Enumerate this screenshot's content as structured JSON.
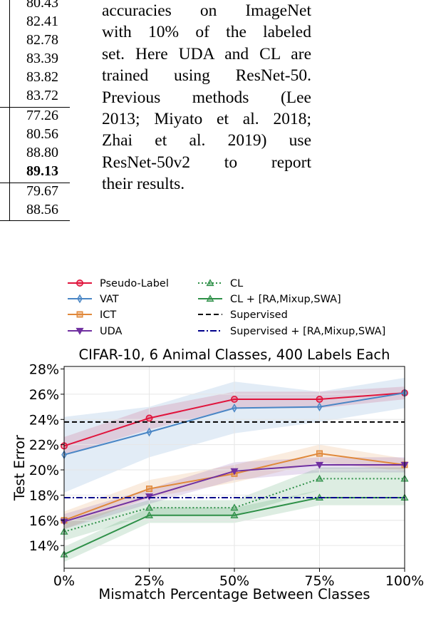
{
  "table_fragment": {
    "rows": [
      {
        "value": "80.43",
        "bold": false
      },
      {
        "value": "82.41",
        "bold": false
      },
      {
        "value": "82.78",
        "bold": false
      },
      {
        "value": "83.39",
        "bold": false
      },
      {
        "value": "83.82",
        "bold": false
      },
      {
        "value": "83.72",
        "bold": false
      },
      {
        "value": "77.26",
        "bold": false
      },
      {
        "value": "80.56",
        "bold": false
      },
      {
        "value": "88.80",
        "bold": false
      },
      {
        "value": "89.13",
        "bold": true
      },
      {
        "value": "79.67",
        "bold": false
      },
      {
        "value": "88.56",
        "bold": false
      }
    ]
  },
  "caption": {
    "lines": [
      "accuracies on ImageNet",
      "with 10% of the labeled",
      "set. Here UDA and CL are",
      "trained using ResNet-50.",
      "Previous methods (Lee",
      "2013; Miyato et al. 2018;",
      "Zhai et al. 2019) use",
      "ResNet-50v2 to report",
      "their results."
    ]
  },
  "chart_data": {
    "type": "line",
    "title": "CIFAR-10, 6 Animal Classes, 400 Labels Each",
    "xlabel": "Mismatch Percentage Between Classes",
    "ylabel": "Test Error",
    "x": [
      0,
      25,
      50,
      75,
      100
    ],
    "x_ticklabels": [
      "0%",
      "25%",
      "50%",
      "75%",
      "100%"
    ],
    "y_ticks": [
      14,
      16,
      18,
      20,
      22,
      24,
      26,
      28
    ],
    "y_ticklabels": [
      "14%",
      "16%",
      "18%",
      "20%",
      "22%",
      "24%",
      "26%",
      "28%"
    ],
    "xlim": [
      0,
      100
    ],
    "ylim": [
      12.2,
      28.2
    ],
    "grid": true,
    "legend_position": "above plot, two columns",
    "series": [
      {
        "name": "Pseudo-Label",
        "color": "#e0143c",
        "marker": "circle",
        "linestyle": "solid",
        "values": [
          21.9,
          24.1,
          25.6,
          25.6,
          26.1
        ],
        "band_low": [
          21.2,
          23.2,
          24.9,
          24.9,
          25.6
        ],
        "band_high": [
          22.6,
          24.9,
          26.2,
          26.2,
          26.6
        ]
      },
      {
        "name": "VAT",
        "color": "#4a86c5",
        "marker": "thin_diamond",
        "linestyle": "solid",
        "values": [
          21.2,
          23.0,
          24.9,
          25.0,
          26.1
        ],
        "band_low": [
          18.2,
          21.0,
          22.9,
          23.8,
          24.9
        ],
        "band_high": [
          24.2,
          25.0,
          27.0,
          26.2,
          27.3
        ]
      },
      {
        "name": "ICT",
        "color": "#e0883a",
        "marker": "square_x",
        "linestyle": "solid",
        "values": [
          16.0,
          18.5,
          19.7,
          21.3,
          20.4
        ],
        "band_low": [
          15.3,
          17.8,
          19.0,
          20.6,
          19.9
        ],
        "band_high": [
          16.7,
          19.2,
          20.4,
          22.0,
          20.9
        ]
      },
      {
        "name": "UDA",
        "color": "#7030a0",
        "marker": "triangle_down",
        "linestyle": "solid",
        "values": [
          15.9,
          17.9,
          19.9,
          20.4,
          20.4
        ],
        "band_low": [
          15.3,
          17.3,
          19.2,
          19.8,
          19.8
        ],
        "band_high": [
          16.5,
          18.5,
          20.6,
          21.0,
          21.0
        ]
      },
      {
        "name": "CL",
        "color": "#2e9048",
        "marker": "triangle_up",
        "linestyle": "dotted",
        "values": [
          15.1,
          17.0,
          17.0,
          19.3,
          19.3
        ],
        "band_low": [
          14.4,
          16.4,
          16.4,
          18.4,
          18.4
        ],
        "band_high": [
          15.8,
          17.6,
          17.6,
          20.2,
          20.2
        ]
      },
      {
        "name": "CL + [RA,Mixup,SWA]",
        "color": "#2e9048",
        "marker": "triangle_up",
        "linestyle": "solid",
        "values": [
          13.3,
          16.4,
          16.4,
          17.8,
          17.8
        ],
        "band_low": [
          12.7,
          15.8,
          15.8,
          17.2,
          17.2
        ],
        "band_high": [
          13.9,
          17.0,
          17.0,
          18.4,
          18.4
        ]
      },
      {
        "name": "Supervised",
        "color": "#000000",
        "marker": "none",
        "linestyle": "dashed",
        "values": [
          23.8,
          23.8,
          23.8,
          23.8,
          23.8
        ]
      },
      {
        "name": "Supervised + [RA,Mixup,SWA]",
        "color": "#00008b",
        "marker": "none",
        "linestyle": "dashdot",
        "values": [
          17.8,
          17.8,
          17.8,
          17.8,
          17.8
        ]
      }
    ]
  }
}
